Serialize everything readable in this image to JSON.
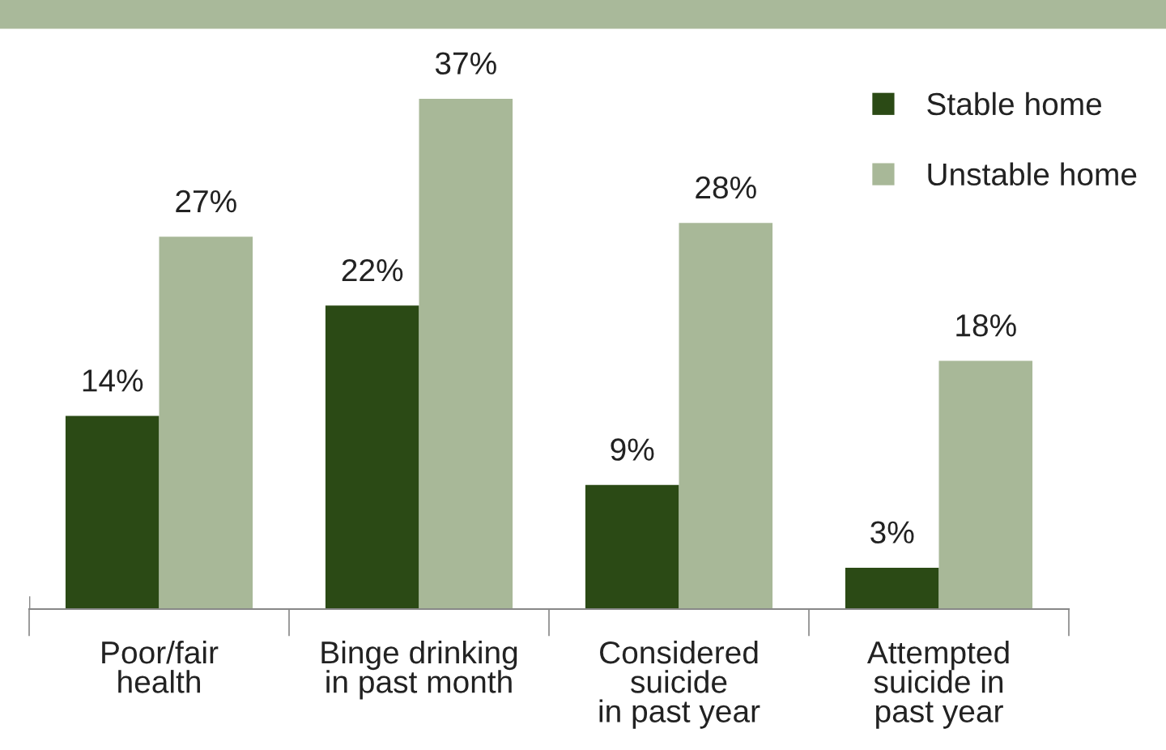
{
  "chart_data": {
    "type": "bar",
    "categories": [
      "Poor/fair\nhealth",
      "Binge drinking\nin past month",
      "Considered\nsuicide\nin past year",
      "Attempted\nsuicide in\npast year"
    ],
    "series": [
      {
        "name": "Stable home",
        "color": "#2b4a15",
        "values": [
          14,
          22,
          9,
          3
        ],
        "value_labels": [
          "14%",
          "22%",
          "9%",
          "3%"
        ]
      },
      {
        "name": "Unstable home",
        "color": "#a8b898",
        "values": [
          27,
          37,
          28,
          18
        ],
        "value_labels": [
          "27%",
          "37%",
          "28%",
          "18%"
        ]
      }
    ],
    "legend": "top right",
    "grid": false
  }
}
